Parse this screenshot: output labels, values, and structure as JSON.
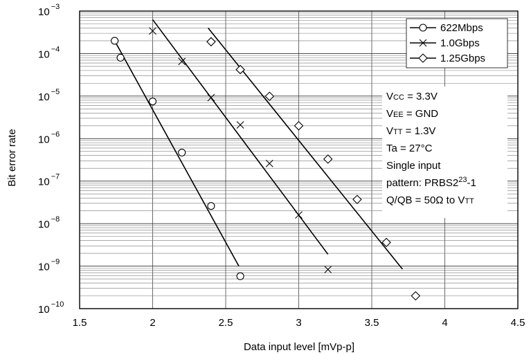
{
  "chart_data": {
    "type": "scatter",
    "title": "",
    "xlabel": "Data input level [mVp-p]",
    "ylabel": "Bit error rate",
    "xlim": [
      1.5,
      4.5
    ],
    "ylim": [
      1e-10,
      0.001
    ],
    "y_scale": "log",
    "x_ticks": [
      "1.5",
      "2",
      "2.5",
      "3",
      "3.5",
      "4",
      "4.5"
    ],
    "y_ticks": [
      {
        "base": "10",
        "exp": "−10"
      },
      {
        "base": "10",
        "exp": "−9"
      },
      {
        "base": "10",
        "exp": "−8"
      },
      {
        "base": "10",
        "exp": "−7"
      },
      {
        "base": "10",
        "exp": "−6"
      },
      {
        "base": "10",
        "exp": "−5"
      },
      {
        "base": "10",
        "exp": "−4"
      },
      {
        "base": "10",
        "exp": "−3"
      }
    ],
    "grid": true,
    "legend_position": "top-right",
    "series": [
      {
        "name": "622Mbps",
        "marker": "circle",
        "points": [
          [
            1.74,
            0.0002
          ],
          [
            1.78,
            8e-05
          ],
          [
            2.0,
            7.5e-06
          ],
          [
            2.2,
            4.7e-07
          ],
          [
            2.4,
            2.6e-08
          ],
          [
            2.6,
            5.8e-10
          ]
        ],
        "fit_line": [
          [
            1.74,
            0.0002
          ],
          [
            2.59,
            1e-09
          ]
        ]
      },
      {
        "name": "1.0Gbps",
        "marker": "x",
        "points": [
          [
            2.0,
            0.00034
          ],
          [
            2.2,
            6.5e-05
          ],
          [
            2.4,
            9.2e-06
          ],
          [
            2.6,
            2.1e-06
          ],
          [
            2.8,
            2.6e-07
          ],
          [
            3.0,
            1.6e-08
          ],
          [
            3.2,
            8.3e-10
          ]
        ],
        "fit_line": [
          [
            2.0,
            0.00063
          ],
          [
            3.2,
            1.9e-09
          ]
        ]
      },
      {
        "name": "1.25Gbps",
        "marker": "diamond",
        "points": [
          [
            2.4,
            0.00019
          ],
          [
            2.6,
            4.2e-05
          ],
          [
            2.8,
            9.9e-06
          ],
          [
            3.0,
            2e-06
          ],
          [
            3.2,
            3.3e-07
          ],
          [
            3.4,
            3.7e-08
          ],
          [
            3.6,
            3.6e-09
          ],
          [
            3.8,
            2e-10
          ]
        ],
        "fit_line": [
          [
            2.38,
            0.0004
          ],
          [
            3.71,
            8.5e-10
          ]
        ]
      }
    ],
    "conditions": [
      {
        "parts": [
          {
            "t": "V"
          },
          {
            "t": "CC",
            "sub": true
          },
          {
            "t": " = 3.3V"
          }
        ]
      },
      {
        "parts": [
          {
            "t": "V"
          },
          {
            "t": "EE",
            "sub": true
          },
          {
            "t": " = GND"
          }
        ]
      },
      {
        "parts": [
          {
            "t": "V"
          },
          {
            "t": "TT",
            "sub": true
          },
          {
            "t": " = 1.3V"
          }
        ]
      },
      {
        "parts": [
          {
            "t": "Ta = 27°C"
          }
        ]
      },
      {
        "parts": [
          {
            "t": "Single input"
          }
        ]
      },
      {
        "parts": [
          {
            "t": "pattern: PRBS2"
          },
          {
            "t": "23",
            "sup": true
          },
          {
            "t": "-1"
          }
        ]
      },
      {
        "parts": [
          {
            "t": "Q/QB = 50Ω to V"
          },
          {
            "t": "TT",
            "sub": true
          }
        ]
      }
    ]
  }
}
